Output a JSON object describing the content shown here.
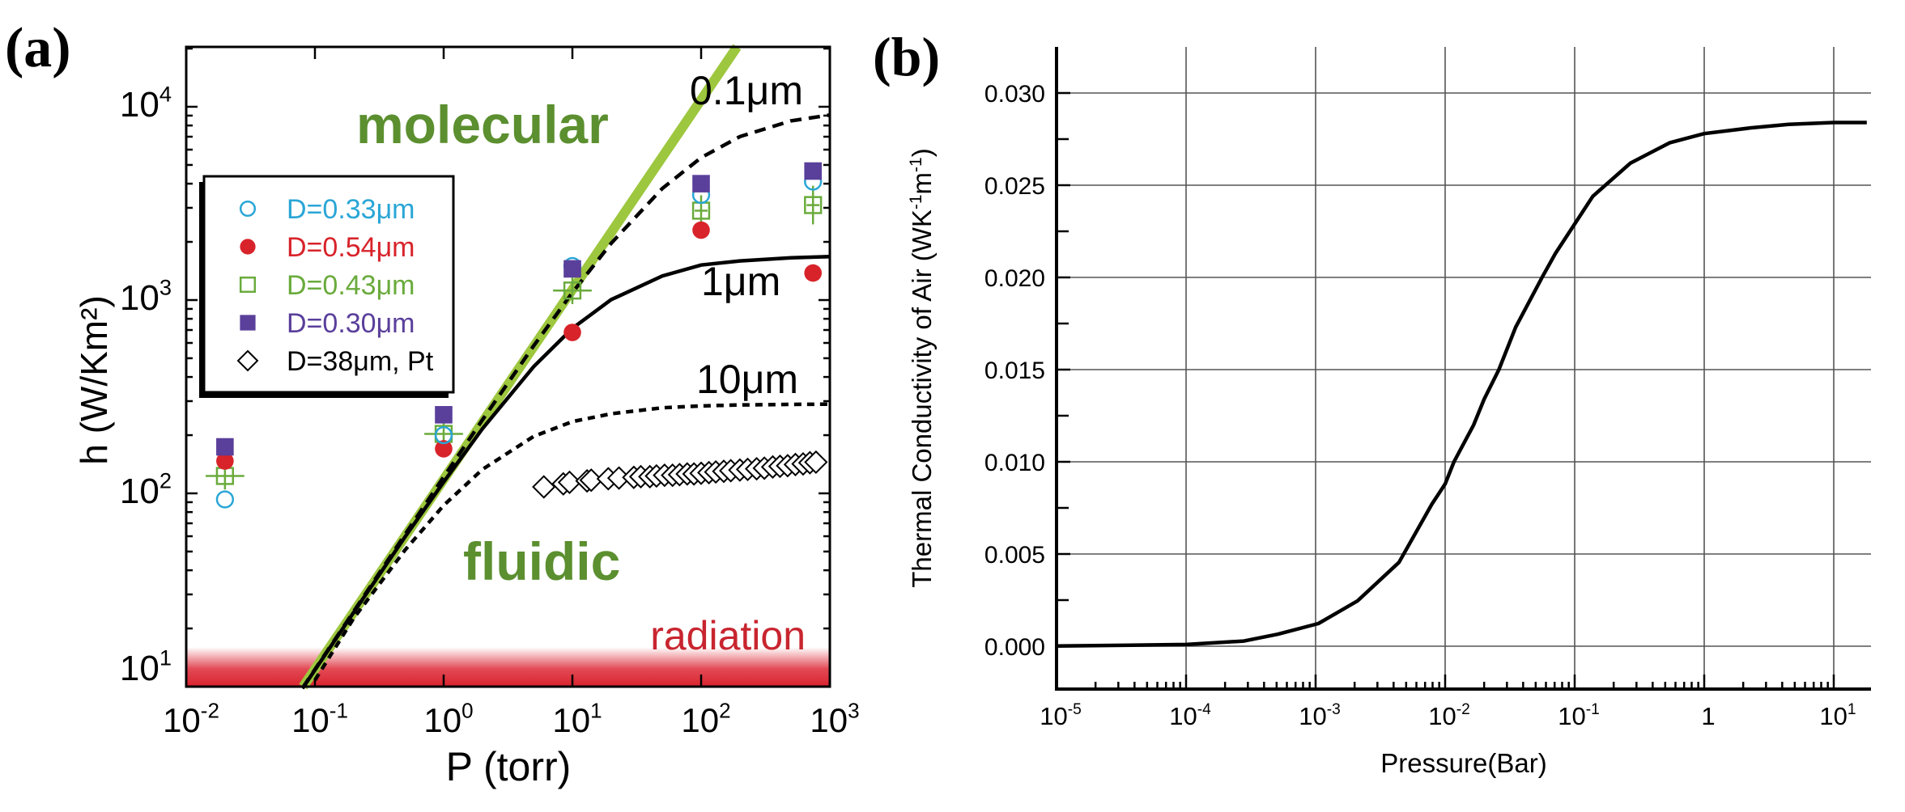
{
  "chart_data": [
    {
      "panel": "(a)",
      "type": "scatter",
      "xlabel": "P (torr)",
      "ylabel": "h (W/Km²)",
      "xscale": "log",
      "yscale": "log",
      "xlim": [
        0.01,
        1000
      ],
      "ylim": [
        10,
        20400
      ],
      "grid": false,
      "legend_position": "upper-left",
      "x_ticks": [
        {
          "base": "10",
          "exp": "-2",
          "value": 0.01
        },
        {
          "base": "10",
          "exp": "-1",
          "value": 0.1
        },
        {
          "base": "10",
          "exp": "0",
          "value": 1
        },
        {
          "base": "10",
          "exp": "1",
          "value": 10
        },
        {
          "base": "10",
          "exp": "2",
          "value": 100
        },
        {
          "base": "10",
          "exp": "3",
          "value": 1000
        }
      ],
      "y_ticks": [
        {
          "base": "10",
          "exp": "1",
          "value": 10
        },
        {
          "base": "10",
          "exp": "2",
          "value": 100
        },
        {
          "base": "10",
          "exp": "3",
          "value": 1000
        },
        {
          "base": "10",
          "exp": "4",
          "value": 10000
        }
      ],
      "series": [
        {
          "name": "D=0.33μm",
          "marker": "open-circle",
          "color": "#2aa6d6",
          "x": [
            0.02,
            1,
            10,
            100,
            740
          ],
          "y": [
            93,
            200,
            1500,
            3500,
            4100
          ]
        },
        {
          "name": "D=0.54μm",
          "marker": "filled-circle",
          "color": "#d8232a",
          "x": [
            0.02,
            1,
            10,
            100,
            740
          ],
          "y": [
            147,
            170,
            680,
            2300,
            1380
          ]
        },
        {
          "name": "D=0.43μm",
          "marker": "open-square",
          "color": "#6aab3c",
          "x": [
            0.02,
            1,
            10,
            100,
            740
          ],
          "y": [
            123,
            203,
            1120,
            2900,
            3100
          ],
          "xerr_decades": [
            0.15,
            0.15,
            0.15,
            0.05,
            0.05
          ],
          "yerr_decades": [
            0.07,
            0.06,
            0.07,
            0.08,
            0.1
          ]
        },
        {
          "name": "D=0.30μm",
          "marker": "filled-square",
          "color": "#5a3f9b",
          "x": [
            0.02,
            1,
            10,
            100,
            740
          ],
          "y": [
            174,
            255,
            1450,
            4000,
            4650
          ]
        },
        {
          "name": "D=38μm, Pt",
          "marker": "open-diamond",
          "color": "#000000",
          "x": [
            6,
            8.5,
            9.5,
            13,
            14,
            19,
            23,
            30,
            34,
            40,
            45,
            52,
            60,
            68,
            78,
            88,
            100,
            115,
            130,
            150,
            170,
            200,
            230,
            270,
            310,
            360,
            410,
            470,
            540,
            620,
            700,
            780
          ],
          "y": [
            108,
            112,
            114,
            116,
            117,
            119,
            120,
            121,
            122,
            122,
            123,
            124,
            124,
            125,
            126,
            126,
            127,
            128,
            129,
            130,
            131,
            132,
            133,
            134,
            135,
            137,
            138,
            139,
            141,
            142,
            144,
            145
          ]
        }
      ],
      "lines": [
        {
          "label": "molecular",
          "style": "thick-solid",
          "color": "#9dc73e",
          "x": [
            0.081,
            190
          ],
          "y": [
            10,
            20400
          ]
        },
        {
          "label": "0.1μm",
          "style": "dashed",
          "color": "#000000",
          "x": [
            0.08,
            0.2,
            0.5,
            1,
            2,
            5,
            10,
            20,
            50,
            100,
            200,
            500,
            1000
          ],
          "y": [
            9.83,
            24.5,
            61.1,
            121.5,
            240,
            579,
            1093,
            1966,
            3779,
            5454,
            7008,
            8453,
            9064
          ]
        },
        {
          "label": "1μm",
          "style": "solid",
          "color": "#000000",
          "x": [
            0.08,
            0.2,
            0.5,
            1,
            2,
            5,
            10,
            20,
            50,
            100,
            200,
            500,
            1000
          ],
          "y": [
            9.78,
            24.25,
            59.4,
            114.5,
            216,
            452,
            714,
            1005,
            1332,
            1518,
            1594,
            1655,
            1677
          ]
        },
        {
          "label": "10μm",
          "style": "short-dashed",
          "color": "#000000",
          "x": [
            0.1,
            0.2,
            0.5,
            1,
            2,
            5,
            10,
            20,
            50,
            100,
            200,
            500,
            1000
          ],
          "y": [
            10.8,
            22.6,
            50.8,
            86.6,
            133,
            197,
            235,
            258,
            277,
            283.3,
            286.6,
            288.6,
            289.3
          ]
        }
      ],
      "regions": [
        {
          "label": "molecular",
          "color": "#5b8f2f"
        },
        {
          "label": "fluidic",
          "color": "#5b8f2f"
        },
        {
          "label": "radiation",
          "color": "#c8252f",
          "y_range": [
            10,
            16
          ]
        }
      ]
    },
    {
      "panel": "(b)",
      "type": "line",
      "xlabel": "Pressure(Bar)",
      "ylabel": "Thermal Conductivity of Air (WK⁻¹m⁻¹)",
      "ylabel_parts": {
        "main": "Thermal Conductivity of Air (WK",
        "sup1": "-1",
        "mid": "m",
        "sup2": "-1",
        "end": ")"
      },
      "xscale": "log",
      "xlim": [
        1e-05,
        19
      ],
      "ylim": [
        -0.0023,
        0.0325
      ],
      "grid": true,
      "x_ticks": [
        {
          "base": "10",
          "exp": "-5",
          "value": 1e-05
        },
        {
          "base": "10",
          "exp": "-4",
          "value": 0.0001
        },
        {
          "base": "10",
          "exp": "-3",
          "value": 0.001
        },
        {
          "base": "10",
          "exp": "-2",
          "value": 0.01
        },
        {
          "base": "10",
          "exp": "-1",
          "value": 0.1
        },
        {
          "base": "1",
          "exp": "",
          "value": 1
        },
        {
          "base": "10",
          "exp": "1",
          "value": 10
        }
      ],
      "y_ticks": [
        "0.000",
        "0.005",
        "0.010",
        "0.015",
        "0.020",
        "0.025",
        "0.030"
      ],
      "series": [
        {
          "color": "#000000",
          "x": [
            1e-05,
            0.0001,
            0.00028,
            0.00051,
            0.00105,
            0.0021,
            0.0044,
            0.0079,
            0.01,
            0.0117,
            0.0166,
            0.02,
            0.026,
            0.035,
            0.056,
            0.071,
            0.138,
            0.27,
            0.54,
            1.0,
            2.24,
            4.5,
            10,
            18
          ],
          "y": [
            1e-05,
            9e-05,
            0.00028,
            0.00065,
            0.00123,
            0.00245,
            0.00455,
            0.0077,
            0.0088,
            0.01,
            0.012,
            0.0134,
            0.015,
            0.0173,
            0.02,
            0.0213,
            0.0244,
            0.0262,
            0.0273,
            0.0278,
            0.0281,
            0.0283,
            0.0284,
            0.0284
          ]
        }
      ]
    }
  ]
}
